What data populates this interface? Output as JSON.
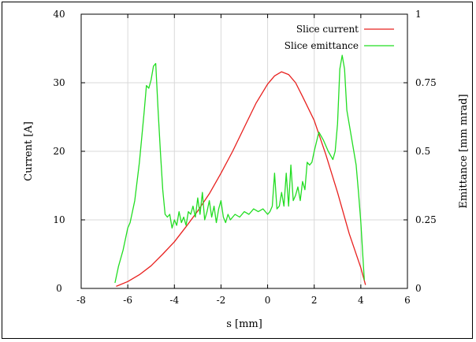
{
  "chart_data": {
    "type": "line",
    "xlabel": "s [mm]",
    "ylabel_left": "Current [A]",
    "ylabel_right": "Emittance [mm mrad]",
    "xlim": [
      -8,
      6
    ],
    "ylim_left": [
      0,
      40
    ],
    "ylim_right": [
      0,
      1
    ],
    "x_ticks": [
      "-8",
      "-6",
      "-4",
      "-2",
      "0",
      "2",
      "4",
      "6"
    ],
    "y_left_ticks": [
      "0",
      "10",
      "20",
      "30",
      "40"
    ],
    "y_right_ticks": [
      "0",
      "0.25",
      "0.5",
      "0.75",
      "1"
    ],
    "grid": true,
    "legend_position": "top-right",
    "series": [
      {
        "name": "Slice current",
        "axis": "left",
        "color": "#e8201e",
        "points": [
          [
            -6.5,
            0.3
          ],
          [
            -6.0,
            1.0
          ],
          [
            -5.5,
            2.0
          ],
          [
            -5.0,
            3.3
          ],
          [
            -4.5,
            5.0
          ],
          [
            -4.0,
            6.8
          ],
          [
            -3.5,
            9.0
          ],
          [
            -3.0,
            11.3
          ],
          [
            -2.5,
            13.8
          ],
          [
            -2.0,
            16.8
          ],
          [
            -1.5,
            20.0
          ],
          [
            -1.0,
            23.5
          ],
          [
            -0.5,
            27.0
          ],
          [
            0.0,
            29.8
          ],
          [
            0.3,
            31.0
          ],
          [
            0.6,
            31.6
          ],
          [
            0.9,
            31.2
          ],
          [
            1.2,
            30.0
          ],
          [
            1.5,
            28.0
          ],
          [
            2.0,
            24.5
          ],
          [
            2.5,
            19.5
          ],
          [
            3.0,
            14.0
          ],
          [
            3.5,
            8.0
          ],
          [
            4.0,
            3.0
          ],
          [
            4.2,
            0.5
          ]
        ]
      },
      {
        "name": "Slice emittance",
        "axis": "right",
        "color": "#22dd22",
        "points": [
          [
            -6.55,
            0.02
          ],
          [
            -6.4,
            0.08
          ],
          [
            -6.2,
            0.14
          ],
          [
            -6.0,
            0.22
          ],
          [
            -5.9,
            0.24
          ],
          [
            -5.7,
            0.32
          ],
          [
            -5.5,
            0.46
          ],
          [
            -5.3,
            0.64
          ],
          [
            -5.2,
            0.74
          ],
          [
            -5.1,
            0.73
          ],
          [
            -5.0,
            0.76
          ],
          [
            -4.9,
            0.81
          ],
          [
            -4.8,
            0.82
          ],
          [
            -4.7,
            0.65
          ],
          [
            -4.6,
            0.5
          ],
          [
            -4.5,
            0.36
          ],
          [
            -4.4,
            0.27
          ],
          [
            -4.3,
            0.26
          ],
          [
            -4.2,
            0.27
          ],
          [
            -4.1,
            0.22
          ],
          [
            -4.0,
            0.25
          ],
          [
            -3.9,
            0.23
          ],
          [
            -3.8,
            0.28
          ],
          [
            -3.7,
            0.24
          ],
          [
            -3.6,
            0.26
          ],
          [
            -3.5,
            0.23
          ],
          [
            -3.4,
            0.28
          ],
          [
            -3.3,
            0.27
          ],
          [
            -3.2,
            0.3
          ],
          [
            -3.1,
            0.26
          ],
          [
            -3.0,
            0.33
          ],
          [
            -2.9,
            0.27
          ],
          [
            -2.8,
            0.35
          ],
          [
            -2.7,
            0.25
          ],
          [
            -2.6,
            0.28
          ],
          [
            -2.5,
            0.32
          ],
          [
            -2.4,
            0.26
          ],
          [
            -2.3,
            0.3
          ],
          [
            -2.2,
            0.24
          ],
          [
            -2.1,
            0.29
          ],
          [
            -2.0,
            0.32
          ],
          [
            -1.9,
            0.26
          ],
          [
            -1.8,
            0.24
          ],
          [
            -1.7,
            0.27
          ],
          [
            -1.6,
            0.25
          ],
          [
            -1.4,
            0.27
          ],
          [
            -1.2,
            0.26
          ],
          [
            -1.0,
            0.28
          ],
          [
            -0.8,
            0.27
          ],
          [
            -0.6,
            0.29
          ],
          [
            -0.4,
            0.28
          ],
          [
            -0.2,
            0.29
          ],
          [
            0.0,
            0.27
          ],
          [
            0.1,
            0.28
          ],
          [
            0.2,
            0.3
          ],
          [
            0.3,
            0.42
          ],
          [
            0.4,
            0.29
          ],
          [
            0.5,
            0.3
          ],
          [
            0.6,
            0.35
          ],
          [
            0.7,
            0.3
          ],
          [
            0.8,
            0.42
          ],
          [
            0.9,
            0.3
          ],
          [
            1.0,
            0.45
          ],
          [
            1.1,
            0.32
          ],
          [
            1.2,
            0.34
          ],
          [
            1.3,
            0.37
          ],
          [
            1.4,
            0.32
          ],
          [
            1.5,
            0.39
          ],
          [
            1.6,
            0.36
          ],
          [
            1.7,
            0.46
          ],
          [
            1.8,
            0.45
          ],
          [
            1.9,
            0.46
          ],
          [
            2.0,
            0.5
          ],
          [
            2.2,
            0.57
          ],
          [
            2.4,
            0.54
          ],
          [
            2.6,
            0.5
          ],
          [
            2.8,
            0.47
          ],
          [
            2.9,
            0.5
          ],
          [
            3.0,
            0.6
          ],
          [
            3.1,
            0.8
          ],
          [
            3.2,
            0.85
          ],
          [
            3.3,
            0.8
          ],
          [
            3.4,
            0.65
          ],
          [
            3.6,
            0.55
          ],
          [
            3.8,
            0.45
          ],
          [
            3.9,
            0.35
          ],
          [
            4.0,
            0.24
          ],
          [
            4.1,
            0.1
          ],
          [
            4.15,
            0.03
          ]
        ]
      }
    ]
  }
}
